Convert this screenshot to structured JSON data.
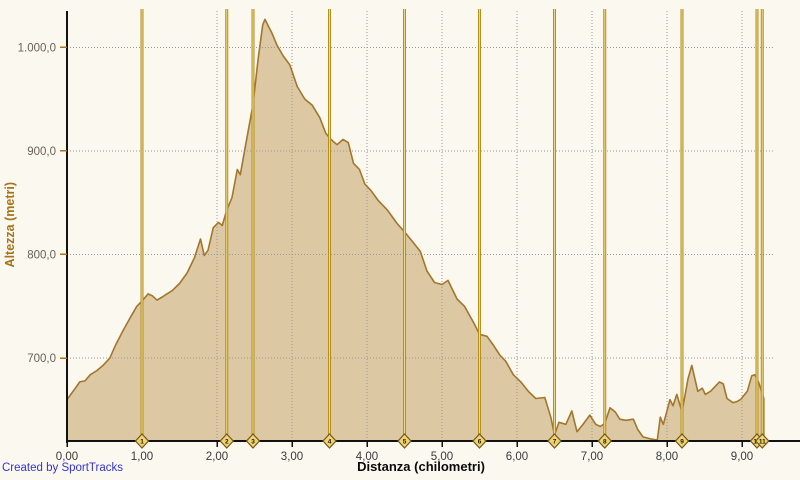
{
  "credit": {
    "text": "Created by SportTracks"
  },
  "colors": {
    "background": "#fbf8f0",
    "area_fill": "#dcc8a3",
    "area_line": "#a3762c",
    "grid": "#999999",
    "axis": "#111111",
    "lap_line": "#b5901f",
    "lap_line_light": "#ecd88c",
    "diamond_fill": "#f0d26e",
    "diamond_stroke": "#71581a",
    "diamond_text": "#1a1a1a",
    "y_tick_mark": "#a87416",
    "y_tick_label": "#6b6156",
    "x_tick_label": "#3a3a3a",
    "ylabel": "#a87416",
    "xlabel": "#0a0a0a",
    "credit": "#3434d3"
  },
  "chart_data": {
    "type": "area",
    "title": "",
    "xlabel": "Distanza (chilometri)",
    "ylabel": "Altezza (metri)",
    "xlim": [
      0,
      9.44
    ],
    "ylim": [
      620,
      1035
    ],
    "grid": "dotted",
    "legend": "none",
    "x_ticks": [
      {
        "v": 0,
        "label": "0,00"
      },
      {
        "v": 1,
        "label": "1,00"
      },
      {
        "v": 2,
        "label": "2,00"
      },
      {
        "v": 3,
        "label": "3,00"
      },
      {
        "v": 4,
        "label": "4,00"
      },
      {
        "v": 5,
        "label": "5,00"
      },
      {
        "v": 6,
        "label": "6,00"
      },
      {
        "v": 7,
        "label": "7,00"
      },
      {
        "v": 8,
        "label": "8,00"
      },
      {
        "v": 9,
        "label": "9,00"
      }
    ],
    "y_ticks": [
      {
        "v": 1000,
        "label": "1.000,0"
      },
      {
        "v": 900,
        "label": "900,0"
      },
      {
        "v": 800,
        "label": "800,0"
      },
      {
        "v": 700,
        "label": "700,0"
      }
    ],
    "lap_markers": [
      {
        "km": 1.0,
        "label": "1"
      },
      {
        "km": 2.13,
        "label": "2"
      },
      {
        "km": 2.48,
        "label": "3"
      },
      {
        "km": 3.5,
        "label": "4"
      },
      {
        "km": 4.5,
        "label": "5"
      },
      {
        "km": 5.5,
        "label": "6"
      },
      {
        "km": 6.5,
        "label": "7"
      },
      {
        "km": 7.17,
        "label": "8"
      },
      {
        "km": 8.2,
        "label": "9"
      },
      {
        "km": 9.2,
        "label": "10"
      },
      {
        "km": 9.27,
        "label": "11"
      }
    ],
    "series": [
      {
        "name": "Altezza (metri)",
        "points": [
          [
            0.0,
            660
          ],
          [
            0.05,
            665
          ],
          [
            0.11,
            671
          ],
          [
            0.17,
            677
          ],
          [
            0.24,
            678
          ],
          [
            0.31,
            684
          ],
          [
            0.4,
            688
          ],
          [
            0.48,
            693
          ],
          [
            0.57,
            700
          ],
          [
            0.65,
            713
          ],
          [
            0.75,
            727
          ],
          [
            0.85,
            740
          ],
          [
            0.93,
            750
          ],
          [
            1.0,
            755
          ],
          [
            1.08,
            762
          ],
          [
            1.14,
            760
          ],
          [
            1.2,
            756
          ],
          [
            1.27,
            759
          ],
          [
            1.33,
            762
          ],
          [
            1.4,
            765
          ],
          [
            1.5,
            772
          ],
          [
            1.6,
            782
          ],
          [
            1.7,
            797
          ],
          [
            1.78,
            815
          ],
          [
            1.83,
            799
          ],
          [
            1.88,
            804
          ],
          [
            1.95,
            826
          ],
          [
            2.02,
            831
          ],
          [
            2.07,
            828
          ],
          [
            2.13,
            843
          ],
          [
            2.2,
            855
          ],
          [
            2.27,
            882
          ],
          [
            2.31,
            877
          ],
          [
            2.38,
            905
          ],
          [
            2.45,
            933
          ],
          [
            2.48,
            945
          ],
          [
            2.55,
            990
          ],
          [
            2.61,
            1022
          ],
          [
            2.64,
            1027
          ],
          [
            2.68,
            1021
          ],
          [
            2.73,
            1014
          ],
          [
            2.8,
            1002
          ],
          [
            2.88,
            992
          ],
          [
            2.97,
            983
          ],
          [
            3.07,
            962
          ],
          [
            3.17,
            950
          ],
          [
            3.27,
            944
          ],
          [
            3.37,
            932
          ],
          [
            3.45,
            917
          ],
          [
            3.52,
            911
          ],
          [
            3.6,
            906
          ],
          [
            3.68,
            911
          ],
          [
            3.75,
            908
          ],
          [
            3.82,
            888
          ],
          [
            3.9,
            882
          ],
          [
            3.97,
            868
          ],
          [
            4.05,
            862
          ],
          [
            4.15,
            852
          ],
          [
            4.27,
            843
          ],
          [
            4.4,
            830
          ],
          [
            4.51,
            821
          ],
          [
            4.6,
            813
          ],
          [
            4.71,
            803
          ],
          [
            4.8,
            784
          ],
          [
            4.9,
            773
          ],
          [
            5.0,
            771
          ],
          [
            5.08,
            775
          ],
          [
            5.2,
            757
          ],
          [
            5.3,
            750
          ],
          [
            5.43,
            733
          ],
          [
            5.5,
            723
          ],
          [
            5.6,
            721
          ],
          [
            5.68,
            713
          ],
          [
            5.77,
            703
          ],
          [
            5.85,
            697
          ],
          [
            5.95,
            684
          ],
          [
            6.05,
            677
          ],
          [
            6.15,
            668
          ],
          [
            6.25,
            661
          ],
          [
            6.37,
            662
          ],
          [
            6.45,
            643
          ],
          [
            6.5,
            626
          ],
          [
            6.56,
            638
          ],
          [
            6.65,
            636
          ],
          [
            6.73,
            649
          ],
          [
            6.8,
            629
          ],
          [
            6.88,
            636
          ],
          [
            6.97,
            645
          ],
          [
            7.05,
            636
          ],
          [
            7.11,
            634
          ],
          [
            7.17,
            637
          ],
          [
            7.24,
            652
          ],
          [
            7.31,
            648
          ],
          [
            7.37,
            641
          ],
          [
            7.45,
            640
          ],
          [
            7.55,
            641
          ],
          [
            7.61,
            631
          ],
          [
            7.68,
            624
          ],
          [
            7.78,
            622
          ],
          [
            7.87,
            621
          ],
          [
            7.91,
            643
          ],
          [
            7.95,
            636
          ],
          [
            8.04,
            660
          ],
          [
            8.08,
            654
          ],
          [
            8.13,
            665
          ],
          [
            8.2,
            648
          ],
          [
            8.28,
            680
          ],
          [
            8.33,
            693
          ],
          [
            8.41,
            668
          ],
          [
            8.47,
            671
          ],
          [
            8.51,
            665
          ],
          [
            8.58,
            668
          ],
          [
            8.7,
            677
          ],
          [
            8.75,
            675
          ],
          [
            8.8,
            661
          ],
          [
            8.88,
            657
          ],
          [
            8.93,
            658
          ],
          [
            8.98,
            660
          ],
          [
            9.07,
            668
          ],
          [
            9.13,
            683
          ],
          [
            9.17,
            684
          ],
          [
            9.22,
            677
          ],
          [
            9.26,
            668
          ],
          [
            9.29,
            661
          ]
        ]
      }
    ]
  }
}
